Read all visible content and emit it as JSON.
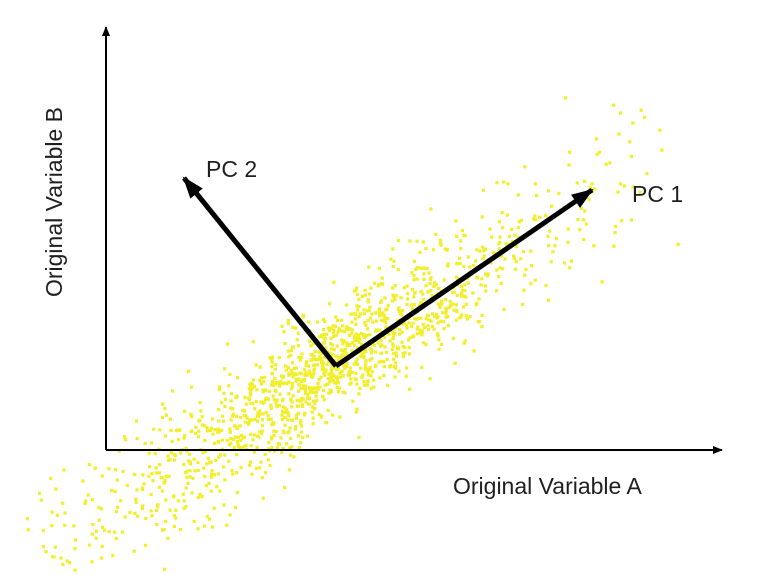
{
  "diagram": {
    "x_axis_label": "Original Variable A",
    "y_axis_label": "Original Variable B",
    "pc1_label": "PC 1",
    "pc2_label": "PC 2"
  },
  "colors": {
    "points": "#f2ee2a",
    "axis": "#000000",
    "vectors": "#000000",
    "background": "#ffffff"
  }
}
